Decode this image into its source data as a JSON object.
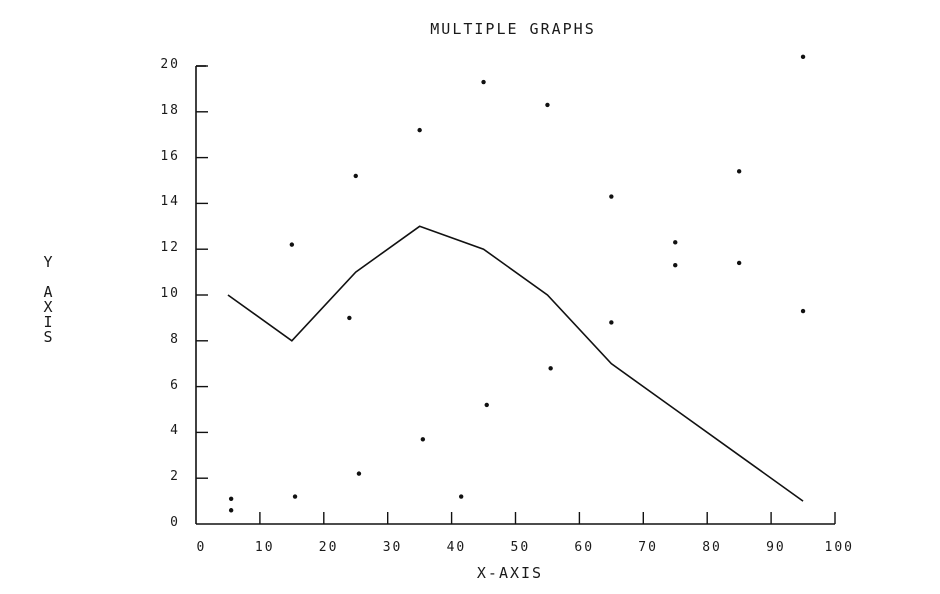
{
  "chart_data": {
    "type": "line",
    "title": "MULTIPLE GRAPHS",
    "xlabel": "X-AXIS",
    "ylabel": "Y AXIS",
    "xlim": [
      0,
      100
    ],
    "ylim": [
      0,
      20
    ],
    "x_ticks": [
      0,
      10,
      20,
      30,
      40,
      50,
      60,
      70,
      80,
      90,
      100
    ],
    "y_ticks": [
      0,
      2,
      4,
      6,
      8,
      10,
      12,
      14,
      16,
      18,
      20
    ],
    "grid": false,
    "legend": null,
    "series": [
      {
        "name": "line",
        "kind": "line",
        "x": [
          5,
          15,
          25,
          35,
          45,
          55,
          65,
          75,
          85,
          95
        ],
        "y": [
          10,
          8,
          11,
          13,
          12,
          10,
          7,
          5,
          3,
          1
        ]
      },
      {
        "name": "scatter",
        "kind": "scatter",
        "points": [
          [
            5.5,
            1.1
          ],
          [
            5.5,
            0.6
          ],
          [
            15,
            12.2
          ],
          [
            15.5,
            1.2
          ],
          [
            25,
            15.2
          ],
          [
            25.5,
            2.2
          ],
          [
            24,
            9.0
          ],
          [
            35,
            17.2
          ],
          [
            35.5,
            3.7
          ],
          [
            41.5,
            1.2
          ],
          [
            45,
            19.3
          ],
          [
            45.5,
            5.2
          ],
          [
            55,
            18.3
          ],
          [
            55.5,
            6.8
          ],
          [
            65,
            14.3
          ],
          [
            65,
            8.8
          ],
          [
            75,
            12.3
          ],
          [
            75,
            11.3
          ],
          [
            85,
            15.4
          ],
          [
            85,
            11.4
          ],
          [
            95,
            20.4
          ],
          [
            95,
            9.3
          ]
        ]
      }
    ]
  },
  "labels": {
    "title": "MULTIPLE GRAPHS",
    "xlabel": "X-AXIS",
    "ylabel_letters": [
      "Y",
      "",
      "A",
      "X",
      "I",
      "S"
    ]
  }
}
